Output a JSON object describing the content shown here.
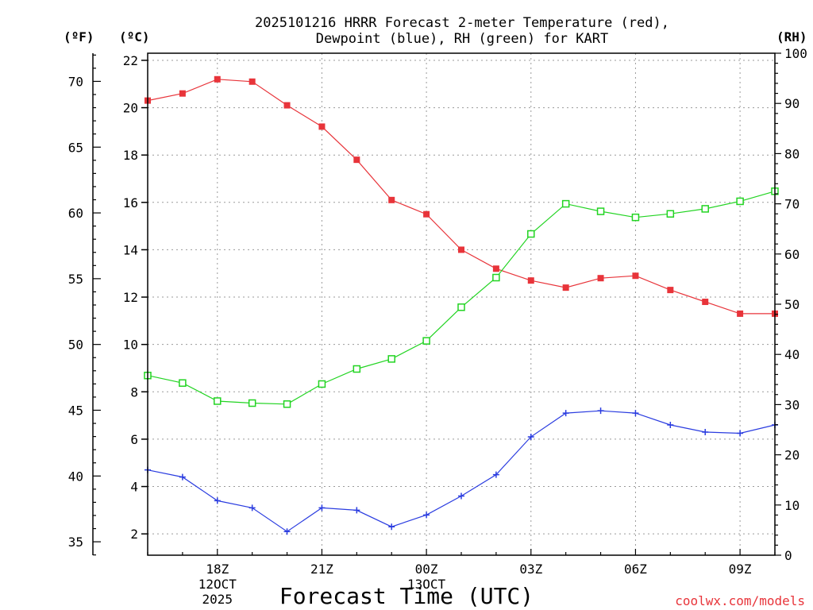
{
  "chart_data": {
    "type": "line",
    "title_line1": "2025101216 HRRR Forecast 2-meter Temperature (red),",
    "title_line2": "Dewpoint (blue), RH (green) for KART",
    "xlabel": "Forecast Time (UTC)",
    "credit": "coolwx.com/models",
    "units": {
      "fahrenheit": "(ºF)",
      "celsius": "(ºC)",
      "rh": "(RH)"
    },
    "x_hours": [
      16,
      17,
      18,
      19,
      20,
      21,
      22,
      23,
      24,
      25,
      26,
      27,
      28,
      29,
      30,
      31,
      32,
      33,
      34
    ],
    "x_ticks": [
      {
        "hour": 18,
        "label": "18Z",
        "sub1": "12OCT",
        "sub2": "2025"
      },
      {
        "hour": 21,
        "label": "21Z",
        "sub1": "",
        "sub2": ""
      },
      {
        "hour": 24,
        "label": "00Z",
        "sub1": "13OCT",
        "sub2": ""
      },
      {
        "hour": 27,
        "label": "03Z",
        "sub1": "",
        "sub2": ""
      },
      {
        "hour": 30,
        "label": "06Z",
        "sub1": "",
        "sub2": ""
      },
      {
        "hour": 33,
        "label": "09Z",
        "sub1": "",
        "sub2": ""
      }
    ],
    "xlim": [
      16,
      34
    ],
    "celsius_lim": [
      1.1,
      22.3
    ],
    "celsius_ticks": [
      2,
      4,
      6,
      8,
      10,
      12,
      14,
      16,
      18,
      20,
      22
    ],
    "fahrenheit_ticks": [
      35,
      40,
      45,
      50,
      55,
      60,
      65,
      70
    ],
    "rh_lim": [
      0,
      100
    ],
    "rh_ticks": [
      0,
      10,
      20,
      30,
      40,
      50,
      60,
      70,
      80,
      90,
      100
    ],
    "series": [
      {
        "name": "Temperature",
        "unit": "C",
        "color": "#e8343a",
        "marker": "filled-square",
        "values": [
          20.3,
          20.6,
          21.2,
          21.1,
          20.1,
          19.2,
          17.8,
          16.1,
          15.5,
          14.0,
          13.2,
          12.7,
          12.4,
          12.8,
          12.9,
          12.3,
          11.8,
          11.3,
          11.3
        ]
      },
      {
        "name": "Dewpoint",
        "unit": "C",
        "color": "#2a3ce0",
        "marker": "plus",
        "values": [
          4.7,
          4.4,
          3.4,
          3.1,
          2.1,
          3.1,
          3.0,
          2.3,
          2.8,
          3.6,
          4.5,
          6.1,
          7.1,
          7.2,
          7.1,
          6.6,
          6.3,
          6.25,
          6.6
        ]
      },
      {
        "name": "RH",
        "unit": "%",
        "color": "#22d422",
        "marker": "open-square",
        "values": [
          35.8,
          34.3,
          30.7,
          30.3,
          30.1,
          34.1,
          37.1,
          39.1,
          42.7,
          49.4,
          55.3,
          64.0,
          70.0,
          68.5,
          67.3,
          68.0,
          69.0,
          70.5,
          72.5
        ]
      }
    ]
  }
}
